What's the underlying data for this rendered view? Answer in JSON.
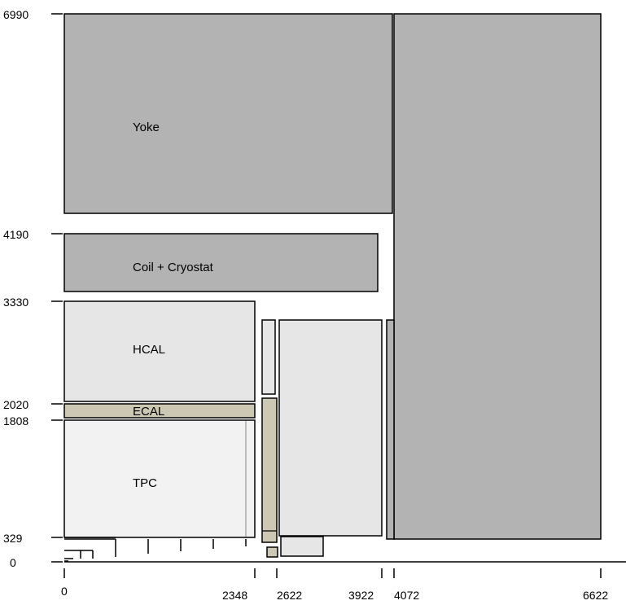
{
  "diagram": {
    "type": "detector-cross-section",
    "units": "mm",
    "x_ticks": [
      "0",
      "2348",
      "2622",
      "3922",
      "4072",
      "6622"
    ],
    "y_ticks": [
      "0",
      "329",
      "1808",
      "2020",
      "3330",
      "4190",
      "6990"
    ],
    "regions": [
      {
        "label": "Yoke",
        "x_mm": [
          0,
          4030
        ],
        "y_mm": [
          4260,
          6990
        ],
        "color": "#b3b3b3"
      },
      {
        "label": "Coil + Cryostat",
        "x_mm": [
          0,
          3850
        ],
        "y_mm": [
          3440,
          4190
        ],
        "color": "#b3b3b3"
      },
      {
        "label": "HCAL",
        "x_mm": [
          0,
          2348
        ],
        "y_mm": [
          2070,
          3330
        ],
        "color": "#e6e6e6"
      },
      {
        "label": "ECAL",
        "x_mm": [
          0,
          2348
        ],
        "y_mm": [
          1870,
          2020
        ],
        "color": "#ccc8b3"
      },
      {
        "label": "TPC",
        "x_mm": [
          0,
          2348
        ],
        "y_mm": [
          329,
          1808
        ],
        "color": "#f2f2f2"
      },
      {
        "label": "",
        "x_mm": [
          4072,
          6622
        ],
        "y_mm": [
          329,
          6990
        ],
        "color": "#b3b3b3"
      }
    ]
  }
}
